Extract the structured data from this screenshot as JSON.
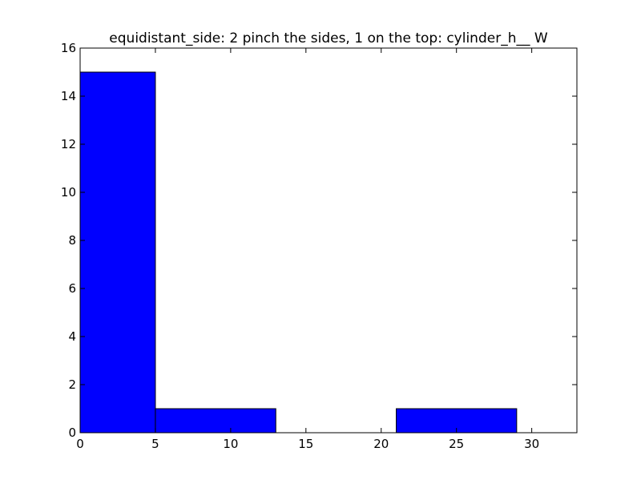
{
  "chart_data": {
    "type": "bar",
    "title": "equidistant_side: 2 pinch the sides, 1 on the top: cylinder_h__ W",
    "xlabel": "",
    "ylabel": "",
    "xlim": [
      0,
      33
    ],
    "ylim": [
      0,
      16
    ],
    "x_ticks": [
      0,
      5,
      10,
      15,
      20,
      25,
      30
    ],
    "y_ticks": [
      0,
      2,
      4,
      6,
      8,
      10,
      12,
      14,
      16
    ],
    "grid": false,
    "bars": [
      {
        "x_start": 0,
        "x_end": 5,
        "value": 15
      },
      {
        "x_start": 5,
        "x_end": 13,
        "value": 1
      },
      {
        "x_start": 21,
        "x_end": 29,
        "value": 1
      }
    ],
    "colors": {
      "bar_fill": "#0000ff",
      "bar_edge": "#000000"
    }
  }
}
